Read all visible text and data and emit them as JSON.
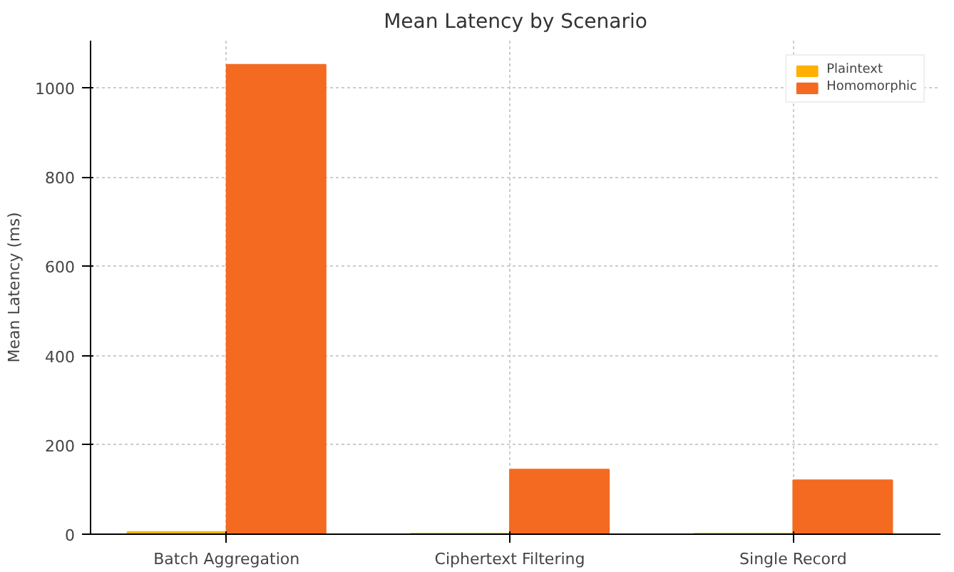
{
  "chart_data": {
    "type": "bar",
    "title": "Mean Latency by Scenario",
    "ylabel": "Mean Latency (ms)",
    "categories": [
      "Batch Aggregation",
      "Ciphertext Filtering",
      "Single Record"
    ],
    "series": [
      {
        "name": "Plaintext",
        "color": "#ffb000",
        "values": [
          5,
          1,
          1
        ]
      },
      {
        "name": "Homomorphic",
        "color": "#f46a21",
        "values": [
          1051,
          145,
          121
        ]
      }
    ],
    "ylim": [
      0,
      1105
    ],
    "yticks": [
      0,
      200,
      400,
      600,
      800,
      1000
    ],
    "grid": true,
    "legend": "top right"
  }
}
